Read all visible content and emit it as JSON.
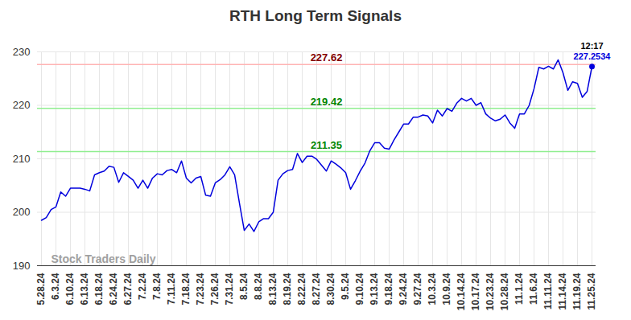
{
  "chart_data": {
    "type": "line",
    "title": "RTH Long Term Signals",
    "watermark": "Stock Traders Daily",
    "time_label": "12:17",
    "color": "#0000dd",
    "marker": "circle",
    "grid": true,
    "ylim": [
      190,
      230
    ],
    "yticks": [
      190,
      200,
      210,
      220,
      230
    ],
    "levels": [
      {
        "value": 227.62,
        "color": "#ffb3b3"
      },
      {
        "value": 219.42,
        "color": "#90ee90"
      },
      {
        "value": 211.35,
        "color": "#90ee90"
      }
    ],
    "categories": [
      "5.28.24",
      null,
      null,
      "6.3.24",
      null,
      null,
      "6.10.24",
      null,
      null,
      "6.13.24",
      null,
      null,
      "6.18.24",
      null,
      null,
      "6.24.24",
      null,
      null,
      "6.27.24",
      null,
      null,
      "7.2.24",
      null,
      null,
      "7.8.24",
      null,
      null,
      "7.11.24",
      null,
      null,
      "7.18.24",
      null,
      null,
      "7.23.24",
      null,
      null,
      "7.26.24",
      null,
      null,
      "7.31.24",
      null,
      null,
      "8.5.24",
      null,
      null,
      "8.8.24",
      null,
      null,
      "8.13.24",
      null,
      null,
      "8.19.24",
      null,
      null,
      "8.22.24",
      null,
      null,
      "8.27.24",
      null,
      null,
      "8.30.24",
      null,
      null,
      "9.5.24",
      null,
      null,
      "9.10.24",
      null,
      null,
      "9.13.24",
      null,
      null,
      "9.18.24",
      null,
      null,
      "9.24.24",
      null,
      null,
      "9.27.24",
      null,
      null,
      "10.3.24",
      null,
      null,
      "10.9.24",
      null,
      null,
      "10.14.24",
      null,
      null,
      "10.17.24",
      null,
      null,
      "10.23.24",
      null,
      null,
      "10.28.24",
      null,
      null,
      "11.1.24",
      null,
      null,
      "11.6.24",
      null,
      null,
      "11.11.24",
      null,
      null,
      "11.14.24",
      null,
      null,
      "11.19.24",
      null,
      null,
      "11.25.24"
    ],
    "values": [
      198.5,
      199,
      200.5,
      201,
      203.8,
      203,
      204.5,
      204.5,
      204.5,
      204.3,
      204,
      207,
      207.4,
      207.7,
      208.6,
      208.4,
      205.6,
      207.4,
      206.7,
      206,
      204.5,
      206,
      204.5,
      206.4,
      207.2,
      207,
      207.8,
      208,
      207.4,
      209.6,
      206.4,
      205.5,
      206.4,
      206.7,
      203.2,
      203,
      205.5,
      206.1,
      207,
      208.5,
      207,
      201.7,
      196.6,
      197.8,
      196.4,
      198.2,
      198.8,
      198.8,
      200,
      206,
      207.2,
      207.8,
      208,
      211,
      209.3,
      210.5,
      210.5,
      209.9,
      208.8,
      207.7,
      209.6,
      209,
      208.3,
      207.4,
      204.3,
      205.9,
      207.7,
      209.2,
      211.5,
      213,
      213,
      212,
      211.8,
      213.5,
      215,
      216.5,
      216.5,
      217.8,
      217.8,
      218.2,
      218,
      216.7,
      219.1,
      218,
      219.4,
      218.9,
      220.4,
      221.3,
      220.8,
      221.3,
      220,
      220.5,
      218.4,
      217.6,
      217.1,
      217.4,
      218.2,
      216.7,
      215.7,
      218.4,
      218.4,
      220,
      223.1,
      227.1,
      226.8,
      227.3,
      226.8,
      228.5,
      226.1,
      222.8,
      224.4,
      224.1,
      221.5,
      222.6,
      227.2534
    ]
  }
}
